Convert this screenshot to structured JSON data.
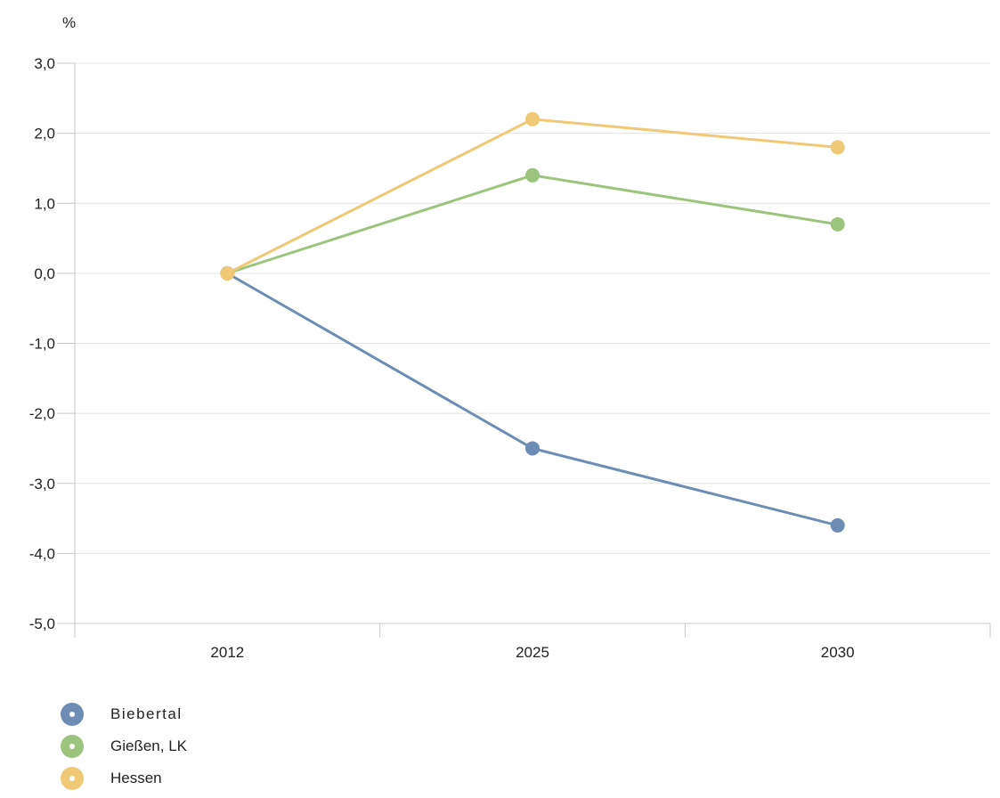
{
  "chart_data": {
    "type": "line",
    "ylabel": "%",
    "categories": [
      "2012",
      "2025",
      "2030"
    ],
    "ylim": [
      -5,
      3
    ],
    "yticks": [
      3,
      2,
      1,
      0,
      -1,
      -2,
      -3,
      -4,
      -5
    ],
    "ytick_labels": [
      "3,0",
      "2,0",
      "1,0",
      "0,0",
      "-1,0",
      "-2,0",
      "-3,0",
      "-4,0",
      "-5,0"
    ],
    "grid": true,
    "legend_position": "bottom-left",
    "series": [
      {
        "name": "Biebertal",
        "color": "#6d8db5",
        "values": [
          0.0,
          -2.5,
          -3.6
        ]
      },
      {
        "name": "Gießen, LK",
        "color": "#9cc47e",
        "values": [
          0.0,
          1.4,
          0.7
        ]
      },
      {
        "name": "Hessen",
        "color": "#f0c977",
        "values": [
          0.0,
          2.2,
          1.8
        ]
      }
    ]
  }
}
